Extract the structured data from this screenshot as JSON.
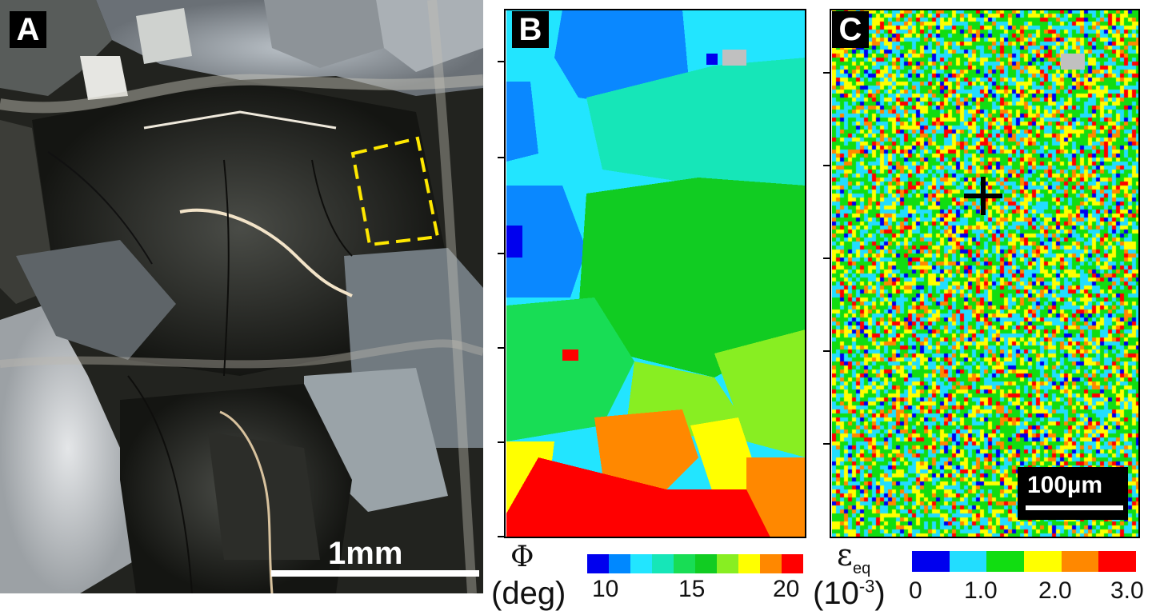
{
  "panels": {
    "a": {
      "label": "A",
      "scale_bar": "1mm"
    },
    "b": {
      "label": "B",
      "symbol": "Φ",
      "unit": "(deg)",
      "colorbar": {
        "ticks": [
          "10",
          "15",
          "20"
        ],
        "colors": [
          "#0000ee",
          "#0088ff",
          "#22e5ff",
          "#16e6b8",
          "#18dd55",
          "#11cc22",
          "#88ee22",
          "#ffff00",
          "#ff8800",
          "#ff0000"
        ]
      }
    },
    "c": {
      "label": "C",
      "symbol": "ε",
      "symbol_sub": "eq",
      "unit_base": "(10",
      "unit_exp": "-3",
      "unit_end": ")",
      "colorbar": {
        "ticks": [
          "0",
          "1.0",
          "2.0",
          "3.0"
        ],
        "colors": [
          "#0000ee",
          "#22ddff",
          "#11dd11",
          "#ffff00",
          "#ff8800",
          "#ff0000"
        ]
      },
      "scale_bar": "100µm"
    }
  },
  "colors": {
    "roi_outline": "#ffe800",
    "null_pixel": "#c0c0c0"
  }
}
